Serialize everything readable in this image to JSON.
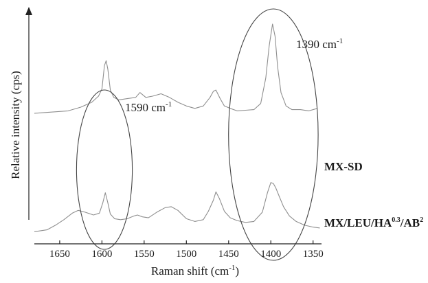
{
  "chart_data": {
    "type": "line",
    "xlabel": "Raman shift (cm",
    "xlabel_sup": "-1",
    "xlabel_end": ")",
    "ylabel": "Relative intensity (cps)",
    "x_reversed": true,
    "xlim": [
      1680,
      1340
    ],
    "ylim": [
      0,
      10
    ],
    "x_ticks": [
      1650,
      1600,
      1550,
      1500,
      1450,
      1400,
      1350
    ],
    "series": [
      {
        "name": "MX-SD",
        "label_parts": [
          "MX-SD"
        ],
        "color": "#8e8e8e",
        "x": [
          1680,
          1660,
          1640,
          1625,
          1612,
          1604,
          1600,
          1597,
          1595,
          1593,
          1590,
          1586,
          1580,
          1570,
          1560,
          1555,
          1548,
          1540,
          1530,
          1520,
          1510,
          1500,
          1490,
          1480,
          1472,
          1468,
          1465,
          1460,
          1455,
          1448,
          1440,
          1430,
          1420,
          1412,
          1406,
          1402,
          1398,
          1395,
          1392,
          1388,
          1382,
          1375,
          1365,
          1355,
          1345
        ],
        "y": [
          2.7,
          2.8,
          2.9,
          3.2,
          3.6,
          4.1,
          4.7,
          6.6,
          7.0,
          6.3,
          4.6,
          4.0,
          3.8,
          3.9,
          4.0,
          4.4,
          4.0,
          4.1,
          4.3,
          4.0,
          3.6,
          3.3,
          3.1,
          3.3,
          4.0,
          4.5,
          4.6,
          3.9,
          3.3,
          3.1,
          2.9,
          2.95,
          3.0,
          3.5,
          5.6,
          8.2,
          10.0,
          9.0,
          6.5,
          4.4,
          3.3,
          3.0,
          3.0,
          2.9,
          3.1
        ]
      },
      {
        "name": "MX/LEU/HA0.3/AB2",
        "label_parts": [
          "MX/LEU/HA",
          "0.3",
          "/AB",
          "2"
        ],
        "color": "#8e8e8e",
        "x": [
          1680,
          1665,
          1655,
          1645,
          1635,
          1628,
          1620,
          1610,
          1603,
          1599,
          1596,
          1593,
          1590,
          1585,
          1578,
          1570,
          1562,
          1558,
          1552,
          1545,
          1535,
          1525,
          1518,
          1510,
          1500,
          1490,
          1480,
          1474,
          1468,
          1465,
          1461,
          1455,
          1448,
          1440,
          1430,
          1420,
          1410,
          1404,
          1400,
          1397,
          1394,
          1390,
          1385,
          1378,
          1370,
          1360,
          1350,
          1342
        ],
        "y": [
          0.2,
          0.4,
          0.9,
          1.5,
          2.2,
          2.5,
          2.3,
          2.0,
          2.2,
          3.3,
          4.4,
          3.3,
          2.1,
          1.6,
          1.5,
          1.6,
          1.9,
          2.0,
          1.8,
          1.7,
          2.3,
          2.8,
          2.9,
          2.5,
          1.6,
          1.3,
          1.5,
          2.4,
          3.6,
          4.5,
          3.8,
          2.4,
          1.7,
          1.4,
          1.2,
          1.3,
          2.3,
          4.4,
          5.5,
          5.4,
          4.9,
          4.0,
          2.9,
          1.9,
          1.3,
          0.9,
          0.7,
          0.6
        ]
      }
    ],
    "annotations": [
      {
        "text": "1590 cm",
        "sup": "-1",
        "x_center": 1597,
        "y_center": 4.6,
        "x_radius": 33,
        "y_radius": 5.0
      },
      {
        "text": "1390 cm",
        "sup": "-1",
        "x_center": 1397,
        "y_center": 6.0,
        "x_radius": 53,
        "y_radius": 9.2
      }
    ]
  }
}
